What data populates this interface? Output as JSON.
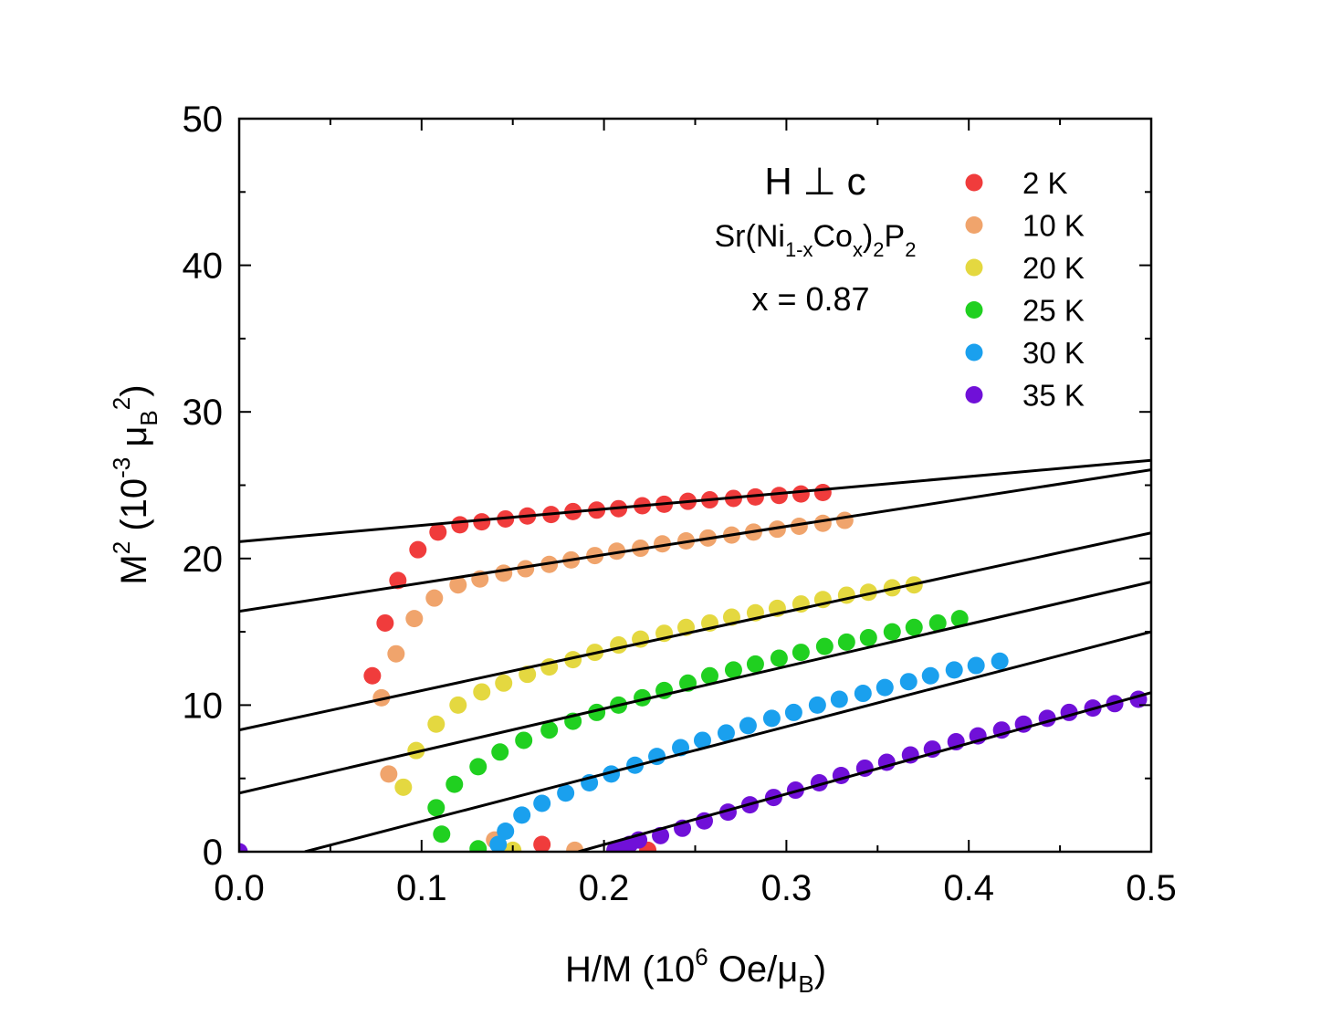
{
  "chart_data": {
    "type": "scatter",
    "title": "",
    "xlabel": {
      "main": "H/M (10",
      "sup": "6",
      "mid": " Oe/μ",
      "sub": "B",
      "end": ")"
    },
    "ylabel": {
      "main": "M",
      "sup1": "2",
      "mid": " (10",
      "sup2": "-3",
      "mid2": " μ",
      "sub": "B",
      "sup3": "2",
      "end": ")"
    },
    "xlim": [
      0,
      0.5
    ],
    "ylim": [
      0,
      50
    ],
    "xticks": [
      0.0,
      0.1,
      0.2,
      0.3,
      0.4,
      0.5
    ],
    "xtick_labels": [
      "0.0",
      "0.1",
      "0.2",
      "0.3",
      "0.4",
      "0.5"
    ],
    "yticks": [
      0,
      10,
      20,
      30,
      40,
      50
    ],
    "ytick_labels": [
      "0",
      "10",
      "20",
      "30",
      "40",
      "50"
    ],
    "annotations": {
      "field": "H ⊥ c",
      "formula": {
        "p1": "Sr(Ni",
        "s1": "1-x",
        "p2": "Co",
        "s2": "x",
        "p3": ")",
        "s3": "2",
        "p4": "P",
        "s4": "2"
      },
      "composition": "x = 0.87"
    },
    "legend_position": "top-right",
    "series": [
      {
        "name": "2 K",
        "color": "#f03c3c",
        "points": [
          [
            0.073,
            12.0
          ],
          [
            0.08,
            15.6
          ],
          [
            0.087,
            18.5
          ],
          [
            0.098,
            20.6
          ],
          [
            0.109,
            21.8
          ],
          [
            0.121,
            22.3
          ],
          [
            0.133,
            22.5
          ],
          [
            0.146,
            22.7
          ],
          [
            0.158,
            22.9
          ],
          [
            0.171,
            23.0
          ],
          [
            0.183,
            23.2
          ],
          [
            0.196,
            23.3
          ],
          [
            0.208,
            23.4
          ],
          [
            0.221,
            23.6
          ],
          [
            0.233,
            23.7
          ],
          [
            0.246,
            23.9
          ],
          [
            0.258,
            24.0
          ],
          [
            0.271,
            24.1
          ],
          [
            0.283,
            24.2
          ],
          [
            0.296,
            24.3
          ],
          [
            0.308,
            24.4
          ],
          [
            0.32,
            24.5
          ],
          [
            0.166,
            0.5
          ],
          [
            0.224,
            0.1
          ]
        ],
        "fit": [
          [
            0.0,
            21.15
          ],
          [
            0.5,
            26.7
          ]
        ]
      },
      {
        "name": "10 K",
        "color": "#f0a46c",
        "points": [
          [
            0.078,
            10.5
          ],
          [
            0.082,
            5.3
          ],
          [
            0.086,
            13.5
          ],
          [
            0.096,
            15.9
          ],
          [
            0.107,
            17.3
          ],
          [
            0.12,
            18.2
          ],
          [
            0.132,
            18.6
          ],
          [
            0.145,
            19.0
          ],
          [
            0.157,
            19.3
          ],
          [
            0.17,
            19.6
          ],
          [
            0.182,
            19.9
          ],
          [
            0.195,
            20.2
          ],
          [
            0.207,
            20.5
          ],
          [
            0.22,
            20.7
          ],
          [
            0.232,
            21.0
          ],
          [
            0.245,
            21.2
          ],
          [
            0.257,
            21.4
          ],
          [
            0.27,
            21.6
          ],
          [
            0.282,
            21.8
          ],
          [
            0.295,
            22.0
          ],
          [
            0.307,
            22.2
          ],
          [
            0.32,
            22.4
          ],
          [
            0.332,
            22.6
          ],
          [
            0.14,
            0.8
          ],
          [
            0.184,
            0.1
          ]
        ],
        "fit": [
          [
            0.0,
            16.4
          ],
          [
            0.5,
            26.05
          ]
        ]
      },
      {
        "name": "20 K",
        "color": "#e4d840",
        "points": [
          [
            0.09,
            4.4
          ],
          [
            0.097,
            6.9
          ],
          [
            0.108,
            8.7
          ],
          [
            0.12,
            10.0
          ],
          [
            0.133,
            10.9
          ],
          [
            0.145,
            11.5
          ],
          [
            0.158,
            12.1
          ],
          [
            0.17,
            12.6
          ],
          [
            0.183,
            13.1
          ],
          [
            0.195,
            13.6
          ],
          [
            0.208,
            14.1
          ],
          [
            0.22,
            14.5
          ],
          [
            0.233,
            14.9
          ],
          [
            0.245,
            15.3
          ],
          [
            0.258,
            15.6
          ],
          [
            0.27,
            16.0
          ],
          [
            0.283,
            16.3
          ],
          [
            0.295,
            16.6
          ],
          [
            0.308,
            16.9
          ],
          [
            0.32,
            17.2
          ],
          [
            0.333,
            17.5
          ],
          [
            0.345,
            17.7
          ],
          [
            0.358,
            18.0
          ],
          [
            0.37,
            18.2
          ],
          [
            0.15,
            0.1
          ]
        ],
        "fit": [
          [
            0.0,
            8.3
          ],
          [
            0.5,
            21.75
          ]
        ]
      },
      {
        "name": "25 K",
        "color": "#20d020",
        "points": [
          [
            0.111,
            1.2
          ],
          [
            0.108,
            3.0
          ],
          [
            0.118,
            4.6
          ],
          [
            0.131,
            5.8
          ],
          [
            0.143,
            6.8
          ],
          [
            0.156,
            7.6
          ],
          [
            0.17,
            8.3
          ],
          [
            0.183,
            8.9
          ],
          [
            0.196,
            9.5
          ],
          [
            0.208,
            10.0
          ],
          [
            0.221,
            10.5
          ],
          [
            0.233,
            11.0
          ],
          [
            0.246,
            11.5
          ],
          [
            0.258,
            12.0
          ],
          [
            0.271,
            12.4
          ],
          [
            0.283,
            12.8
          ],
          [
            0.296,
            13.2
          ],
          [
            0.308,
            13.6
          ],
          [
            0.321,
            14.0
          ],
          [
            0.333,
            14.3
          ],
          [
            0.345,
            14.6
          ],
          [
            0.358,
            15.0
          ],
          [
            0.37,
            15.3
          ],
          [
            0.383,
            15.6
          ],
          [
            0.395,
            15.9
          ],
          [
            0.131,
            0.2
          ]
        ],
        "fit": [
          [
            0.0,
            4.0
          ],
          [
            0.5,
            18.4
          ]
        ]
      },
      {
        "name": "30 K",
        "color": "#1aa0ee",
        "points": [
          [
            0.142,
            0.5
          ],
          [
            0.146,
            1.4
          ],
          [
            0.155,
            2.5
          ],
          [
            0.166,
            3.3
          ],
          [
            0.179,
            4.0
          ],
          [
            0.192,
            4.7
          ],
          [
            0.204,
            5.3
          ],
          [
            0.217,
            5.9
          ],
          [
            0.229,
            6.5
          ],
          [
            0.242,
            7.1
          ],
          [
            0.254,
            7.6
          ],
          [
            0.267,
            8.1
          ],
          [
            0.279,
            8.6
          ],
          [
            0.292,
            9.1
          ],
          [
            0.304,
            9.5
          ],
          [
            0.317,
            10.0
          ],
          [
            0.329,
            10.4
          ],
          [
            0.342,
            10.8
          ],
          [
            0.354,
            11.2
          ],
          [
            0.367,
            11.6
          ],
          [
            0.379,
            12.0
          ],
          [
            0.392,
            12.4
          ],
          [
            0.404,
            12.7
          ],
          [
            0.417,
            13.0
          ]
        ],
        "fit": [
          [
            0.036,
            0.0
          ],
          [
            0.5,
            15.0
          ]
        ]
      },
      {
        "name": "35 K",
        "color": "#7010d8",
        "points": [
          [
            0.0,
            0.0
          ],
          [
            0.206,
            0.1
          ],
          [
            0.21,
            0.3
          ],
          [
            0.214,
            0.5
          ],
          [
            0.219,
            0.8
          ],
          [
            0.231,
            1.1
          ],
          [
            0.243,
            1.6
          ],
          [
            0.255,
            2.1
          ],
          [
            0.268,
            2.7
          ],
          [
            0.28,
            3.2
          ],
          [
            0.293,
            3.7
          ],
          [
            0.305,
            4.2
          ],
          [
            0.318,
            4.7
          ],
          [
            0.33,
            5.2
          ],
          [
            0.343,
            5.7
          ],
          [
            0.355,
            6.1
          ],
          [
            0.368,
            6.6
          ],
          [
            0.38,
            7.0
          ],
          [
            0.393,
            7.5
          ],
          [
            0.405,
            7.9
          ],
          [
            0.418,
            8.3
          ],
          [
            0.43,
            8.7
          ],
          [
            0.443,
            9.1
          ],
          [
            0.455,
            9.5
          ],
          [
            0.468,
            9.8
          ],
          [
            0.48,
            10.1
          ],
          [
            0.493,
            10.4
          ]
        ],
        "fit": [
          [
            0.186,
            0.0
          ],
          [
            0.5,
            10.85
          ]
        ]
      }
    ]
  }
}
